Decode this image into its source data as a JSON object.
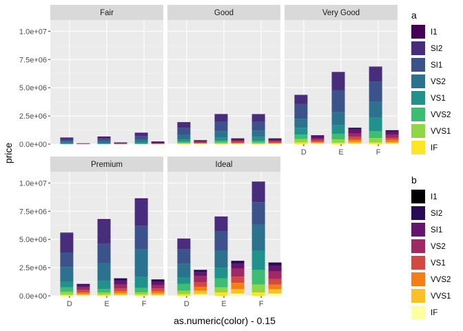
{
  "chart_data": {
    "type": "bar",
    "subtype": "faceted-stacked-bar",
    "xlabel": "as.numeric(color) - 0.15",
    "ylabel": "price",
    "categories": [
      "D",
      "E",
      "F"
    ],
    "ylim": [
      0,
      11000000
    ],
    "yticks": [
      {
        "value": 0,
        "label": "0.0e+00"
      },
      {
        "value": 2500000,
        "label": "2.5e+06"
      },
      {
        "value": 5000000,
        "label": "5.0e+06"
      },
      {
        "value": 7500000,
        "label": "7.5e+06"
      },
      {
        "value": 10000000,
        "label": "1.0e+07"
      }
    ],
    "grid": true,
    "legend_position": "right",
    "grades": [
      "I1",
      "SI2",
      "SI1",
      "VS2",
      "VS1",
      "VVS2",
      "VVS1",
      "IF"
    ],
    "legends": [
      {
        "title": "a",
        "items": [
          {
            "label": "I1",
            "color": "#440154"
          },
          {
            "label": "SI2",
            "color": "#472d7b"
          },
          {
            "label": "SI1",
            "color": "#3b528b"
          },
          {
            "label": "VS2",
            "color": "#2c728e"
          },
          {
            "label": "VS1",
            "color": "#21918c"
          },
          {
            "label": "VVS2",
            "color": "#3fbc73"
          },
          {
            "label": "VVS1",
            "color": "#8fd744"
          },
          {
            "label": "IF",
            "color": "#fde725"
          }
        ]
      },
      {
        "title": "b",
        "items": [
          {
            "label": "I1",
            "color": "#000004"
          },
          {
            "label": "SI2",
            "color": "#280b54"
          },
          {
            "label": "SI1",
            "color": "#65156e"
          },
          {
            "label": "VS2",
            "color": "#9f2a63"
          },
          {
            "label": "VS1",
            "color": "#d44842"
          },
          {
            "label": "VVS2",
            "color": "#f57d15"
          },
          {
            "label": "VVS1",
            "color": "#fac127"
          },
          {
            "label": "IF",
            "color": "#fcffa4"
          }
        ]
      }
    ],
    "facets": [
      {
        "title": "Fair",
        "a": [
          [
            30000,
            180000,
            140000,
            140000,
            70000,
            20000,
            5000,
            0
          ],
          [
            60000,
            160000,
            200000,
            160000,
            60000,
            20000,
            10000,
            0
          ],
          [
            70000,
            250000,
            300000,
            200000,
            130000,
            50000,
            10000,
            0
          ]
        ],
        "b": [
          [
            5000,
            20000,
            20000,
            15000,
            10000,
            5000,
            0,
            0
          ],
          [
            10000,
            40000,
            40000,
            30000,
            20000,
            10000,
            5000,
            0
          ],
          [
            15000,
            60000,
            60000,
            45000,
            30000,
            15000,
            5000,
            0
          ]
        ]
      },
      {
        "title": "Good",
        "a": [
          [
            30000,
            500000,
            600000,
            400000,
            200000,
            100000,
            80000,
            40000
          ],
          [
            30000,
            650000,
            850000,
            550000,
            300000,
            150000,
            100000,
            40000
          ],
          [
            30000,
            650000,
            800000,
            550000,
            350000,
            150000,
            100000,
            30000
          ]
        ],
        "b": [
          [
            10000,
            50000,
            80000,
            60000,
            60000,
            40000,
            30000,
            20000
          ],
          [
            10000,
            80000,
            120000,
            100000,
            80000,
            60000,
            40000,
            20000
          ],
          [
            10000,
            80000,
            120000,
            100000,
            80000,
            60000,
            40000,
            20000
          ]
        ]
      },
      {
        "title": "Very Good",
        "a": [
          [
            20000,
            800000,
            1300000,
            800000,
            600000,
            400000,
            300000,
            150000
          ],
          [
            30000,
            1600000,
            1900000,
            1200000,
            750000,
            500000,
            300000,
            120000
          ],
          [
            30000,
            1300000,
            1800000,
            1400000,
            1200000,
            600000,
            400000,
            140000
          ]
        ],
        "b": [
          [
            5000,
            100000,
            200000,
            150000,
            120000,
            80000,
            80000,
            50000
          ],
          [
            5000,
            150000,
            350000,
            300000,
            250000,
            200000,
            150000,
            50000
          ],
          [
            5000,
            100000,
            300000,
            250000,
            200000,
            200000,
            130000,
            50000
          ]
        ]
      },
      {
        "title": "Premium",
        "a": [
          [
            50000,
            1700000,
            1300000,
            1300000,
            500000,
            400000,
            250000,
            100000
          ],
          [
            100000,
            2100000,
            1700000,
            1600000,
            700000,
            300000,
            200000,
            100000
          ],
          [
            80000,
            2350000,
            2100000,
            2400000,
            1000000,
            400000,
            200000,
            110000
          ]
        ],
        "b": [
          [
            5000,
            100000,
            200000,
            250000,
            200000,
            150000,
            100000,
            50000
          ],
          [
            10000,
            200000,
            350000,
            350000,
            250000,
            200000,
            150000,
            50000
          ],
          [
            10000,
            200000,
            300000,
            300000,
            250000,
            200000,
            150000,
            50000
          ]
        ]
      },
      {
        "title": "Ideal",
        "a": [
          [
            30000,
            900000,
            1300000,
            1200000,
            600000,
            600000,
            300000,
            150000
          ],
          [
            30000,
            1300000,
            1700000,
            1500000,
            950000,
            800000,
            450000,
            300000
          ],
          [
            30000,
            1800000,
            2000000,
            2300000,
            1700000,
            1300000,
            700000,
            300000
          ]
        ],
        "b": [
          [
            5000,
            200000,
            350000,
            550000,
            400000,
            350000,
            300000,
            150000
          ],
          [
            10000,
            250000,
            450000,
            700000,
            550000,
            550000,
            400000,
            200000
          ],
          [
            10000,
            300000,
            500000,
            650000,
            500000,
            400000,
            400000,
            200000
          ]
        ]
      }
    ]
  }
}
